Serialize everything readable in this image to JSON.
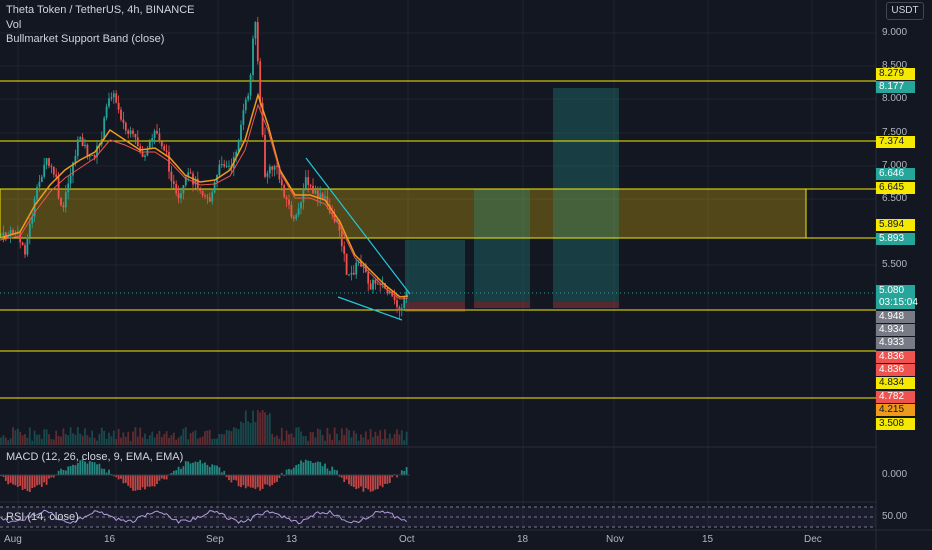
{
  "header": {
    "title": "Theta Token / TetherUS, 4h, BINANCE",
    "vol_label": "Vol",
    "indicator_label": "Bullmarket Support Band (close)",
    "currency": "USDT"
  },
  "indicators": {
    "macd_label": "MACD (12, 26, close, 9, EMA, EMA)",
    "rsi_label": "RSI (14, close)"
  },
  "price_axis": [
    "9.000",
    "8.500",
    "8.000",
    "7.500",
    "7.000",
    "6.500",
    "5.500"
  ],
  "price_tags": [
    {
      "text": "8.279",
      "bg": "#f5e900",
      "fg": "#131722"
    },
    {
      "text": "8.177",
      "bg": "#26a69a",
      "fg": "#ffffff"
    },
    {
      "text": "7.374",
      "bg": "#f5e900",
      "fg": "#131722"
    },
    {
      "text": "6.646",
      "bg": "#26a69a",
      "fg": "#ffffff"
    },
    {
      "text": "6.645",
      "bg": "#f5e900",
      "fg": "#131722"
    },
    {
      "text": "5.894",
      "bg": "#f5e900",
      "fg": "#131722"
    },
    {
      "text": "5.893",
      "bg": "#26a69a",
      "fg": "#ffffff"
    },
    {
      "text": "5.080",
      "bg": "#26a69a",
      "fg": "#ffffff"
    },
    {
      "text": "03:15:04",
      "bg": "#26a69a",
      "fg": "#ffffff"
    },
    {
      "text": "4.948",
      "bg": "#787b86",
      "fg": "#ffffff"
    },
    {
      "text": "4.934",
      "bg": "#787b86",
      "fg": "#ffffff"
    },
    {
      "text": "4.933",
      "bg": "#787b86",
      "fg": "#ffffff"
    },
    {
      "text": "4.836",
      "bg": "#ef5350",
      "fg": "#ffffff"
    },
    {
      "text": "4.836",
      "bg": "#ef5350",
      "fg": "#ffffff"
    },
    {
      "text": "4.834",
      "bg": "#f5e900",
      "fg": "#131722"
    },
    {
      "text": "4.782",
      "bg": "#ef5350",
      "fg": "#ffffff"
    },
    {
      "text": "4.215",
      "bg": "#ef9a1a",
      "fg": "#131722"
    },
    {
      "text": "3.508",
      "bg": "#f5e900",
      "fg": "#131722"
    }
  ],
  "macd_axis": "0.000",
  "rsi_axis": "50.00",
  "time_axis": [
    "Aug",
    "16",
    "Sep",
    "13",
    "Oct",
    "18",
    "Nov",
    "15",
    "Dec"
  ],
  "colors": {
    "background": "#131722",
    "up": "#26a69a",
    "down": "#ef5350",
    "level_line": "#f5e900",
    "zone_fill": "#f5c400"
  }
}
